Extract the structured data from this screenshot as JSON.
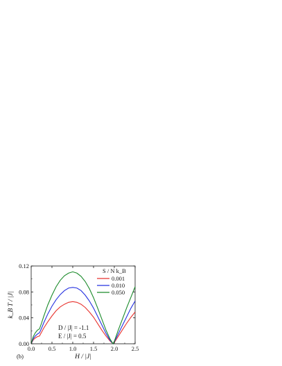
{
  "panel_label": "(b)",
  "chart_data": {
    "type": "line",
    "xlabel": "H / |J|",
    "ylabel": "k_B T / |J|",
    "xlim": [
      0.0,
      2.5
    ],
    "ylim": [
      0.0,
      0.12
    ],
    "xticks": [
      "0.0",
      "0.5",
      "1.0",
      "1.5",
      "2.0",
      "2.5"
    ],
    "yticks": [
      "0.00",
      "0.04",
      "0.08",
      "0.12"
    ],
    "legend_title": "S / N k_B",
    "legend_position": "top-right",
    "annotations": [
      "D / |J| = -1.1",
      "E / |J| = 0.5"
    ],
    "series": [
      {
        "name": "0.001",
        "color": "#e8322d",
        "x": [
          0.0,
          0.05,
          0.1,
          0.15,
          0.2,
          0.25,
          0.3,
          0.4,
          0.5,
          0.6,
          0.7,
          0.8,
          0.9,
          1.0,
          1.1,
          1.2,
          1.3,
          1.4,
          1.5,
          1.6,
          1.7,
          1.8,
          1.9,
          1.97,
          2.0,
          2.1,
          2.2,
          2.3,
          2.4,
          2.5
        ],
        "y": [
          0.0,
          0.006,
          0.009,
          0.011,
          0.012,
          0.018,
          0.024,
          0.034,
          0.043,
          0.051,
          0.057,
          0.061,
          0.064,
          0.065,
          0.064,
          0.061,
          0.056,
          0.049,
          0.041,
          0.031,
          0.021,
          0.012,
          0.004,
          0.0,
          0.002,
          0.012,
          0.022,
          0.032,
          0.041,
          0.049
        ]
      },
      {
        "name": "0.010",
        "color": "#2430e0",
        "x": [
          0.0,
          0.05,
          0.1,
          0.15,
          0.2,
          0.25,
          0.3,
          0.4,
          0.5,
          0.6,
          0.7,
          0.8,
          0.9,
          1.0,
          1.1,
          1.2,
          1.3,
          1.4,
          1.5,
          1.6,
          1.7,
          1.8,
          1.9,
          1.97,
          2.0,
          2.1,
          2.2,
          2.3,
          2.4,
          2.5
        ],
        "y": [
          0.0,
          0.008,
          0.012,
          0.015,
          0.017,
          0.024,
          0.032,
          0.046,
          0.058,
          0.068,
          0.076,
          0.082,
          0.086,
          0.087,
          0.086,
          0.082,
          0.075,
          0.066,
          0.055,
          0.042,
          0.029,
          0.016,
          0.005,
          0.0,
          0.003,
          0.016,
          0.029,
          0.042,
          0.055,
          0.066
        ]
      },
      {
        "name": "0.050",
        "color": "#1a8a2a",
        "x": [
          0.0,
          0.05,
          0.1,
          0.15,
          0.2,
          0.25,
          0.3,
          0.4,
          0.5,
          0.6,
          0.7,
          0.8,
          0.9,
          1.0,
          1.1,
          1.2,
          1.3,
          1.4,
          1.5,
          1.6,
          1.7,
          1.8,
          1.9,
          1.97,
          2.0,
          2.1,
          2.2,
          2.3,
          2.4,
          2.5
        ],
        "y": [
          0.0,
          0.011,
          0.017,
          0.021,
          0.023,
          0.032,
          0.042,
          0.06,
          0.075,
          0.088,
          0.098,
          0.105,
          0.109,
          0.111,
          0.109,
          0.104,
          0.096,
          0.085,
          0.071,
          0.055,
          0.038,
          0.021,
          0.007,
          0.0,
          0.004,
          0.022,
          0.039,
          0.056,
          0.072,
          0.088
        ]
      }
    ]
  }
}
